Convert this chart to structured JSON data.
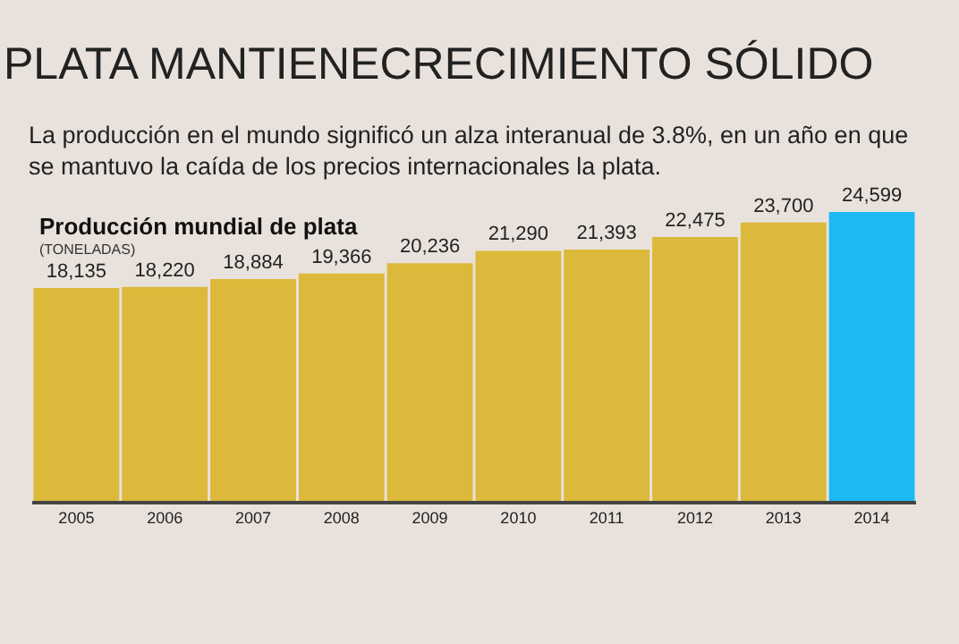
{
  "chart_data": {
    "type": "bar",
    "title": "PLATA MANTIENECRECIMIENTO SÓLIDO",
    "subtitle": "La producción en el mundo significó un alza interanual de 3.8%, en un año en que\nse mantuvo la caída de los precios internacionales la plata.",
    "annotations": [
      "Producción mundial de plata"
    ],
    "ylabel": "(TONELADAS)",
    "categories": [
      "2005",
      "2006",
      "2007",
      "2008",
      "2009",
      "2010",
      "2011",
      "2012",
      "2013",
      "2014"
    ],
    "values": [
      18135,
      18220,
      18884,
      19366,
      20236,
      21290,
      21393,
      22475,
      23700,
      24599
    ],
    "value_labels": [
      "18,135",
      "18,220",
      "18,884",
      "19,366",
      "20,236",
      "21,290",
      "21,393",
      "22,475",
      "23,700",
      "24,599"
    ],
    "colors": [
      "#dcb93a",
      "#dcb93a",
      "#dcb93a",
      "#dcb93a",
      "#dcb93a",
      "#dcb93a",
      "#dcb93a",
      "#dcb93a",
      "#dcb93a",
      "#1cb9f4"
    ],
    "grid": false,
    "tick_labels": "x"
  }
}
